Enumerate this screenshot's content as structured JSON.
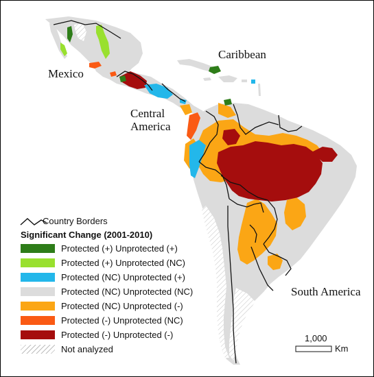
{
  "map": {
    "regions": {
      "mexico": "Mexico",
      "caribbean": "Caribbean",
      "central_america_line1": "Central",
      "central_america_line2": "America",
      "south_america": "South America"
    }
  },
  "legend": {
    "borders_label": "Country Borders",
    "title": "Significant Change (2001-2010)",
    "items": [
      {
        "label": "Protected (+) Unprotected (+)",
        "color": "#2e7d19"
      },
      {
        "label": "Protected (+) Unprotected (NC)",
        "color": "#99e02f"
      },
      {
        "label": "Protected (NC) Unprotected (+)",
        "color": "#23b7ea"
      },
      {
        "label": "Protected (NC) Unprotected (NC)",
        "color": "#dcdcdc"
      },
      {
        "label": "Protected (NC) Unprotected (-)",
        "color": "#fba615"
      },
      {
        "label": "Protected (-) Unprotected (NC)",
        "color": "#fa5a14"
      },
      {
        "label": "Protected (-) Unprotected (-)",
        "color": "#a50d0d"
      }
    ],
    "not_analyzed_label": "Not analyzed"
  },
  "scale_bar": {
    "value": "1,000",
    "unit": "Km"
  }
}
